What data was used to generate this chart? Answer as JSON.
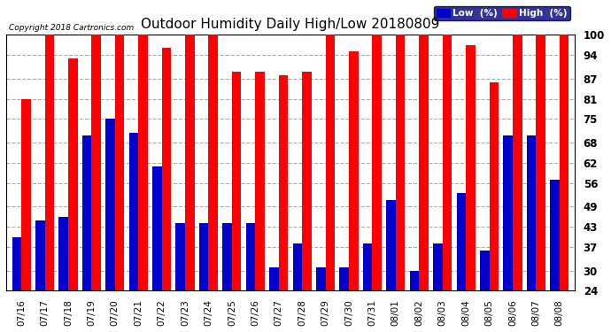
{
  "title": "Outdoor Humidity Daily High/Low 20180809",
  "copyright": "Copyright 2018 Cartronics.com",
  "dates": [
    "07/16",
    "07/17",
    "07/18",
    "07/19",
    "07/20",
    "07/21",
    "07/22",
    "07/23",
    "07/24",
    "07/25",
    "07/26",
    "07/27",
    "07/28",
    "07/29",
    "07/30",
    "07/31",
    "08/01",
    "08/02",
    "08/03",
    "08/04",
    "08/05",
    "08/06",
    "08/07",
    "08/08"
  ],
  "high": [
    81,
    100,
    93,
    100,
    100,
    100,
    96,
    100,
    100,
    89,
    89,
    88,
    89,
    100,
    95,
    100,
    100,
    100,
    100,
    97,
    86,
    100,
    100,
    100
  ],
  "low": [
    40,
    45,
    46,
    70,
    75,
    71,
    61,
    44,
    44,
    44,
    44,
    31,
    38,
    31,
    31,
    38,
    51,
    30,
    38,
    53,
    36,
    70,
    70,
    57
  ],
  "high_color": "#ff0000",
  "low_color": "#0000cc",
  "bg_color": "#ffffff",
  "grid_color": "#aaaaaa",
  "ylim_min": 24,
  "ylim_max": 100,
  "yticks": [
    24,
    30,
    37,
    43,
    49,
    56,
    62,
    68,
    75,
    81,
    87,
    94,
    100
  ],
  "legend_low_label": "Low  (%)",
  "legend_high_label": "High  (%)"
}
